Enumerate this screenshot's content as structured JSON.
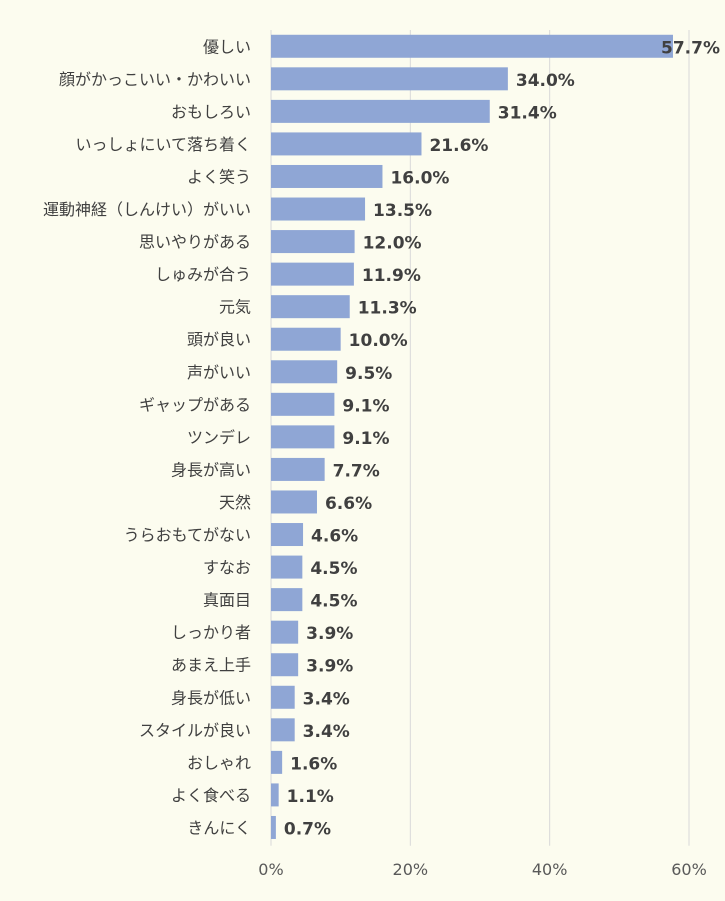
{
  "chart_data": {
    "type": "bar",
    "orientation": "horizontal",
    "title": "",
    "xlabel": "",
    "ylabel": "",
    "xlim": [
      0,
      60
    ],
    "x_ticks": [
      "0%",
      "20%",
      "40%",
      "60%"
    ],
    "grid": true,
    "bar_color": "#8fa6d5",
    "categories": [
      "優しい",
      "顔がかっこいい・かわいい",
      "おもしろい",
      "いっしょにいて落ち着く",
      "よく笑う",
      "運動神経（しんけい）がいい",
      "思いやりがある",
      "しゅみが合う",
      "元気",
      "頭が良い",
      "声がいい",
      "ギャップがある",
      "ツンデレ",
      "身長が高い",
      "天然",
      "うらおもてがない",
      "すなお",
      "真面目",
      "しっかり者",
      "あまえ上手",
      "身長が低い",
      "スタイルが良い",
      "おしゃれ",
      "よく食べる",
      "きんにく"
    ],
    "values": [
      57.7,
      34.0,
      31.4,
      21.6,
      16.0,
      13.5,
      12.0,
      11.9,
      11.3,
      10.0,
      9.5,
      9.1,
      9.1,
      7.7,
      6.6,
      4.6,
      4.5,
      4.5,
      3.9,
      3.9,
      3.4,
      3.4,
      1.6,
      1.1,
      0.7
    ],
    "value_labels": [
      "57.7%",
      "34.0%",
      "31.4%",
      "21.6%",
      "16.0%",
      "13.5%",
      "12.0%",
      "11.9%",
      "11.3%",
      "10.0%",
      "9.5%",
      "9.1%",
      "9.1%",
      "7.7%",
      "6.6%",
      "4.6%",
      "4.5%",
      "4.5%",
      "3.9%",
      "3.9%",
      "3.4%",
      "3.4%",
      "1.6%",
      "1.1%",
      "0.7%"
    ]
  }
}
